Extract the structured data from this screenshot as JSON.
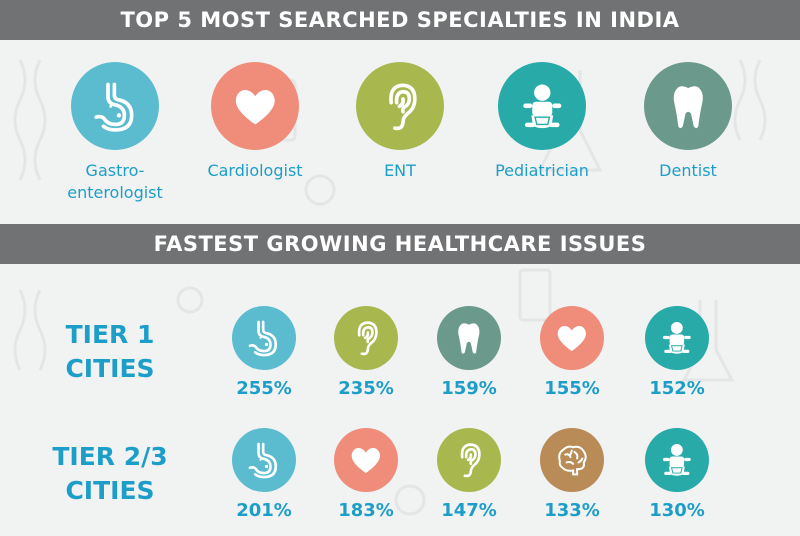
{
  "section1": {
    "title": "TOP 5 MOST SEARCHED SPECIALTIES IN INDIA",
    "specialties": [
      {
        "label": "Gastro-\nenterologist",
        "icon": "stomach-icon",
        "color": "#5bbccf"
      },
      {
        "label": "Cardiologist",
        "icon": "heart-icon",
        "color": "#f08c7a"
      },
      {
        "label": "ENT",
        "icon": "ear-icon",
        "color": "#a8b84f"
      },
      {
        "label": "Pediatrician",
        "icon": "baby-icon",
        "color": "#27aaa8"
      },
      {
        "label": "Dentist",
        "icon": "tooth-icon",
        "color": "#6b9a8c"
      }
    ]
  },
  "section2": {
    "title": "FASTEST GROWING HEALTHCARE ISSUES",
    "tiers": [
      {
        "label": "TIER 1\nCITIES",
        "items": [
          {
            "value": "255%",
            "icon": "stomach-icon",
            "color": "#5bbccf"
          },
          {
            "value": "235%",
            "icon": "ear-icon",
            "color": "#a8b84f"
          },
          {
            "value": "159%",
            "icon": "tooth-icon",
            "color": "#6b9a8c"
          },
          {
            "value": "155%",
            "icon": "heart-icon",
            "color": "#f08c7a"
          },
          {
            "value": "152%",
            "icon": "baby-icon",
            "color": "#27aaa8"
          }
        ]
      },
      {
        "label": "TIER 2/3\nCITIES",
        "items": [
          {
            "value": "201%",
            "icon": "stomach-icon",
            "color": "#5bbccf"
          },
          {
            "value": "183%",
            "icon": "heart-icon",
            "color": "#f08c7a"
          },
          {
            "value": "147%",
            "icon": "ear-icon",
            "color": "#a8b84f"
          },
          {
            "value": "133%",
            "icon": "brain-icon",
            "color": "#b88b57"
          },
          {
            "value": "130%",
            "icon": "baby-icon",
            "color": "#27aaa8"
          }
        ]
      }
    ]
  }
}
